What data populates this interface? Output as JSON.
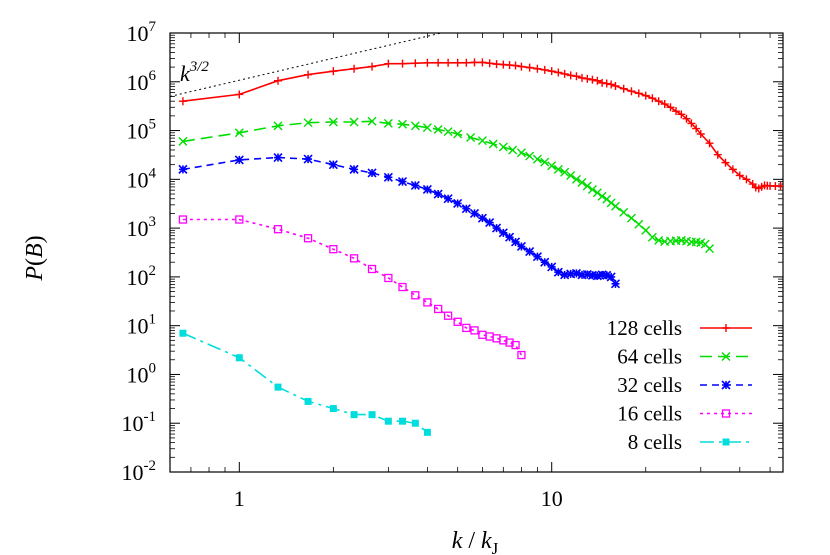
{
  "chart_data": {
    "type": "line",
    "title": "",
    "xlabel": "k / kJ",
    "ylabel": "P(B)",
    "x_scale": "log",
    "y_scale": "log",
    "xlim": [
      0.6,
      55
    ],
    "ylim": [
      0.01,
      10000000
    ],
    "grid": false,
    "legend_position": "bottom-right",
    "x_ticks": [
      {
        "value": 1,
        "label": "1"
      },
      {
        "value": 10,
        "label": "10"
      }
    ],
    "y_ticks": [
      {
        "value": 0.01,
        "base": "10",
        "exp": "-2"
      },
      {
        "value": 0.1,
        "base": "10",
        "exp": "-1"
      },
      {
        "value": 1,
        "base": "10",
        "exp": "0"
      },
      {
        "value": 10,
        "base": "10",
        "exp": "1"
      },
      {
        "value": 100,
        "base": "10",
        "exp": "2"
      },
      {
        "value": 1000,
        "base": "10",
        "exp": "3"
      },
      {
        "value": 10000,
        "base": "10",
        "exp": "4"
      },
      {
        "value": 100000,
        "base": "10",
        "exp": "5"
      },
      {
        "value": 1000000,
        "base": "10",
        "exp": "6"
      },
      {
        "value": 10000000,
        "base": "10",
        "exp": "7"
      }
    ],
    "reference_line": {
      "label_base": "k",
      "label_exp": "3/2",
      "x": [
        0.6,
        5
      ],
      "y": [
        500000,
        12000000
      ],
      "color": "#000000"
    },
    "series": [
      {
        "name": "128 cells",
        "color": "#ff0000",
        "marker": "plus",
        "dash": "",
        "x": [
          0.66,
          1.0,
          1.33,
          1.66,
          2.0,
          2.33,
          2.66,
          3.0,
          3.33,
          3.66,
          4.0,
          4.33,
          4.66,
          5.0,
          5.33,
          5.66,
          6.0,
          6.33,
          6.66,
          7.0,
          7.33,
          7.66,
          8.0,
          8.5,
          9.0,
          9.5,
          10.0,
          10.5,
          11.0,
          11.5,
          12.0,
          12.5,
          13.0,
          13.5,
          14.0,
          14.5,
          15.0,
          15.5,
          16.0,
          17.0,
          18.0,
          19.0,
          20.0,
          21.0,
          22.0,
          23.0,
          24.0,
          25.0,
          26.0,
          27.0,
          28.0,
          29.0,
          30.0,
          32.0,
          34.0,
          36.0,
          38.0,
          40.0,
          42.0,
          44.0,
          45.0,
          46.0,
          47.0,
          48.0,
          49.0,
          50.0,
          52.0,
          54.0
        ],
        "y": [
          400000,
          550000,
          1050000,
          1400000,
          1650000,
          1850000,
          2050000,
          2350000,
          2350000,
          2400000,
          2450000,
          2450000,
          2450000,
          2450000,
          2450000,
          2500000,
          2500000,
          2400000,
          2300000,
          2250000,
          2200000,
          2150000,
          2050000,
          1950000,
          1850000,
          1750000,
          1650000,
          1550000,
          1450000,
          1350000,
          1300000,
          1200000,
          1150000,
          1100000,
          1050000,
          950000,
          920000,
          880000,
          820000,
          720000,
          640000,
          580000,
          520000,
          460000,
          400000,
          350000,
          300000,
          250000,
          215000,
          175000,
          140000,
          110000,
          85000,
          55000,
          32000,
          22000,
          16000,
          12000,
          10000,
          8000,
          6800,
          6500,
          7000,
          7500,
          7400,
          7300,
          7300,
          7300
        ]
      },
      {
        "name": "64 cells",
        "color": "#00dd00",
        "marker": "cross",
        "dash": "12,6",
        "x": [
          0.66,
          1.0,
          1.33,
          1.66,
          2.0,
          2.33,
          2.66,
          3.0,
          3.33,
          3.66,
          4.0,
          4.33,
          4.66,
          5.0,
          5.5,
          6.0,
          6.5,
          7.0,
          7.5,
          8.0,
          8.5,
          9.0,
          9.5,
          10.0,
          10.5,
          11.0,
          11.5,
          12.0,
          12.5,
          13.0,
          13.5,
          14.0,
          14.5,
          15.0,
          15.5,
          16.0,
          17.0,
          18.0,
          19.0,
          20.0,
          21.0,
          22.0,
          23.0,
          24.0,
          25.0,
          26.0,
          27.0,
          28.0,
          29.0,
          30.0,
          31.0,
          32.0
        ],
        "y": [
          60000,
          90000,
          125000,
          145000,
          150000,
          150000,
          155000,
          140000,
          135000,
          125000,
          115000,
          105000,
          95000,
          85000,
          72000,
          62000,
          53000,
          46000,
          40000,
          35000,
          30000,
          26000,
          22500,
          19000,
          16000,
          14000,
          12000,
          10000,
          8600,
          7300,
          6200,
          5300,
          4500,
          3900,
          3300,
          2800,
          2100,
          1600,
          1200,
          900,
          650,
          560,
          530,
          540,
          550,
          560,
          540,
          520,
          520,
          500,
          470,
          380
        ]
      },
      {
        "name": "32 cells",
        "color": "#0000ff",
        "marker": "star",
        "dash": "7,5",
        "x": [
          0.66,
          1.0,
          1.33,
          1.66,
          2.0,
          2.33,
          2.66,
          3.0,
          3.33,
          3.66,
          4.0,
          4.33,
          4.66,
          5.0,
          5.33,
          5.66,
          6.0,
          6.33,
          6.66,
          7.0,
          7.33,
          7.66,
          8.0,
          8.5,
          9.0,
          9.5,
          10.0,
          10.5,
          11.0,
          11.5,
          12.0,
          12.5,
          13.0,
          13.5,
          14.0,
          14.5,
          15.0,
          15.5,
          16.0
        ],
        "y": [
          16000,
          25000,
          28000,
          26000,
          20000,
          16000,
          13500,
          11000,
          9000,
          7500,
          6200,
          5000,
          4000,
          3200,
          2500,
          2000,
          1600,
          1300,
          1000,
          800,
          650,
          520,
          420,
          330,
          260,
          200,
          160,
          125,
          110,
          115,
          118,
          110,
          112,
          108,
          105,
          110,
          108,
          100,
          72
        ]
      },
      {
        "name": "16 cells",
        "color": "#ff00ff",
        "marker": "square-open",
        "dash": "3,4",
        "x": [
          0.66,
          1.0,
          1.33,
          1.66,
          2.0,
          2.33,
          2.66,
          3.0,
          3.33,
          3.66,
          4.0,
          4.33,
          4.66,
          5.0,
          5.33,
          5.66,
          6.0,
          6.33,
          6.66,
          7.0,
          7.33,
          7.66,
          8.0
        ],
        "y": [
          1500,
          1500,
          950,
          620,
          370,
          240,
          145,
          95,
          62,
          42,
          30,
          22,
          16,
          12,
          9,
          8,
          6.5,
          6,
          5.5,
          5,
          4.5,
          4,
          2.5
        ]
      },
      {
        "name": "8 cells",
        "color": "#00dddd",
        "marker": "square-filled",
        "dash": "14,5,3,5",
        "x": [
          0.66,
          1.0,
          1.33,
          1.66,
          2.0,
          2.33,
          2.66,
          3.0,
          3.33,
          3.66,
          4.0
        ],
        "y": [
          7,
          2.2,
          0.55,
          0.28,
          0.2,
          0.15,
          0.15,
          0.11,
          0.11,
          0.1,
          0.065
        ]
      }
    ]
  }
}
